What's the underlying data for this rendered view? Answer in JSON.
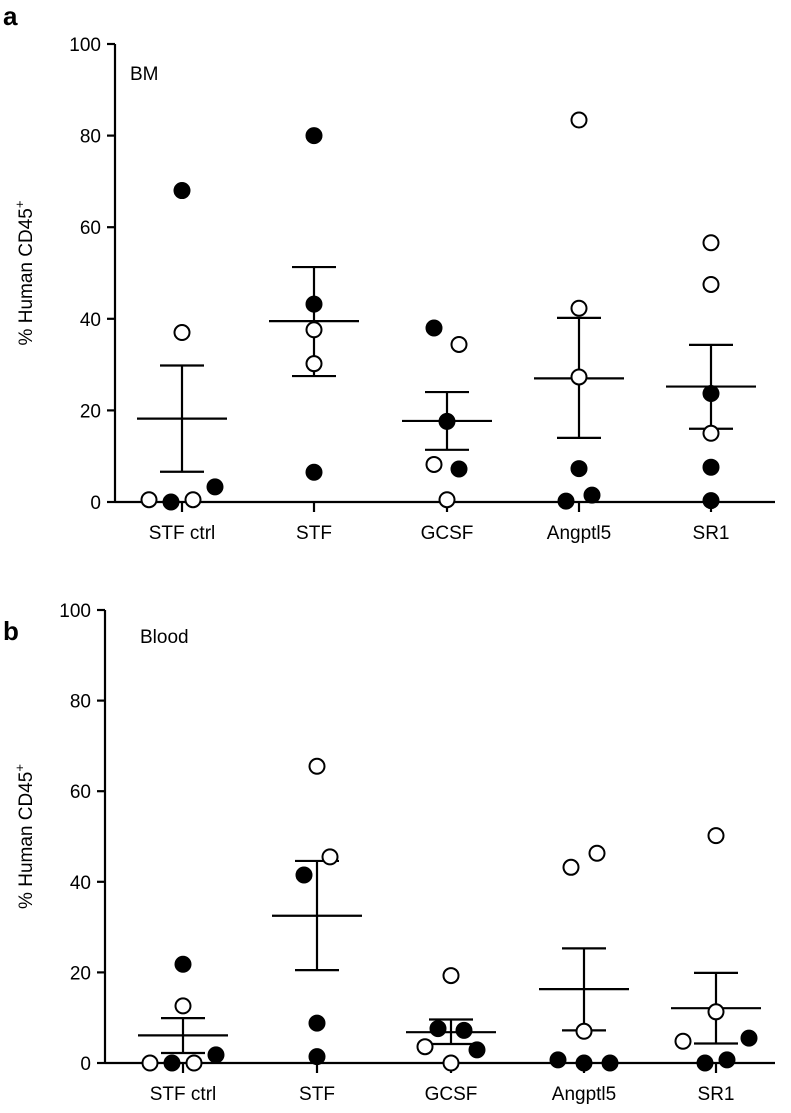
{
  "chart_data": [
    {
      "type": "scatter",
      "panel_label": "a",
      "inset_label": "BM",
      "ylabel": "% Human CD45",
      "ylabel_sup": "+",
      "ylim": [
        0,
        100
      ],
      "yticks": [
        "0",
        "20",
        "40",
        "60",
        "80",
        "100"
      ],
      "categories": [
        "STF ctrl",
        "STF",
        "GCSF",
        "Angptl5",
        "SR1"
      ],
      "groups": [
        {
          "points": [
            {
              "v": 68,
              "filled": true
            },
            {
              "v": 37,
              "filled": false
            },
            {
              "v": 0.5,
              "filled": false
            },
            {
              "v": 0,
              "filled": true
            },
            {
              "v": 0.5,
              "filled": false
            },
            {
              "v": 3.3,
              "filled": true
            }
          ],
          "mean": 18.2,
          "sem_low": 6.6,
          "sem_high": 29.8
        },
        {
          "points": [
            {
              "v": 80,
              "filled": true
            },
            {
              "v": 43.2,
              "filled": true
            },
            {
              "v": 37.6,
              "filled": false
            },
            {
              "v": 30.2,
              "filled": false
            },
            {
              "v": 6.5,
              "filled": true
            }
          ],
          "mean": 39.5,
          "sem_low": 27.5,
          "sem_high": 51.3
        },
        {
          "points": [
            {
              "v": 38,
              "filled": true
            },
            {
              "v": 34.4,
              "filled": false
            },
            {
              "v": 17.6,
              "filled": true
            },
            {
              "v": 8.2,
              "filled": false
            },
            {
              "v": 7.2,
              "filled": true
            },
            {
              "v": 0.5,
              "filled": false
            }
          ],
          "mean": 17.7,
          "sem_low": 11.4,
          "sem_high": 24
        },
        {
          "points": [
            {
              "v": 83.4,
              "filled": false
            },
            {
              "v": 42.3,
              "filled": false
            },
            {
              "v": 27.3,
              "filled": false
            },
            {
              "v": 7.3,
              "filled": true
            },
            {
              "v": 0.2,
              "filled": true
            },
            {
              "v": 1.5,
              "filled": true
            }
          ],
          "mean": 27,
          "sem_low": 14,
          "sem_high": 40.2
        },
        {
          "points": [
            {
              "v": 56.6,
              "filled": false
            },
            {
              "v": 47.5,
              "filled": false
            },
            {
              "v": 23.7,
              "filled": true
            },
            {
              "v": 15,
              "filled": false
            },
            {
              "v": 7.6,
              "filled": true
            },
            {
              "v": 0.3,
              "filled": true
            }
          ],
          "mean": 25.2,
          "sem_low": 16,
          "sem_high": 34.3
        }
      ]
    },
    {
      "type": "scatter",
      "panel_label": "b",
      "inset_label": "Blood",
      "ylabel": "% Human CD45",
      "ylabel_sup": "+",
      "ylim": [
        0,
        100
      ],
      "yticks": [
        "0",
        "20",
        "40",
        "60",
        "80",
        "100"
      ],
      "categories": [
        "STF ctrl",
        "STF",
        "GCSF",
        "Angptl5",
        "SR1"
      ],
      "groups": [
        {
          "points": [
            {
              "v": 21.8,
              "filled": true
            },
            {
              "v": 12.6,
              "filled": false
            },
            {
              "v": 0,
              "filled": false
            },
            {
              "v": 0,
              "filled": true
            },
            {
              "v": 0,
              "filled": false
            },
            {
              "v": 1.8,
              "filled": true
            }
          ],
          "mean": 6.1,
          "sem_low": 2.2,
          "sem_high": 9.9
        },
        {
          "points": [
            {
              "v": 65.5,
              "filled": false
            },
            {
              "v": 45.5,
              "filled": false
            },
            {
              "v": 41.5,
              "filled": true
            },
            {
              "v": 8.8,
              "filled": true
            },
            {
              "v": 1.4,
              "filled": true
            }
          ],
          "mean": 32.5,
          "sem_low": 20.5,
          "sem_high": 44.6
        },
        {
          "points": [
            {
              "v": 19.3,
              "filled": false
            },
            {
              "v": 7.6,
              "filled": true
            },
            {
              "v": 7.2,
              "filled": true
            },
            {
              "v": 3.6,
              "filled": false
            },
            {
              "v": 2.9,
              "filled": true
            },
            {
              "v": 0,
              "filled": false
            }
          ],
          "mean": 6.8,
          "sem_low": 4.2,
          "sem_high": 9.6
        },
        {
          "points": [
            {
              "v": 46.3,
              "filled": false
            },
            {
              "v": 43.2,
              "filled": false
            },
            {
              "v": 7,
              "filled": false
            },
            {
              "v": 0.7,
              "filled": true
            },
            {
              "v": 0,
              "filled": true
            },
            {
              "v": 0,
              "filled": true
            }
          ],
          "mean": 16.3,
          "sem_low": 7.2,
          "sem_high": 25.3
        },
        {
          "points": [
            {
              "v": 50.2,
              "filled": false
            },
            {
              "v": 11.3,
              "filled": false
            },
            {
              "v": 5.5,
              "filled": true
            },
            {
              "v": 4.8,
              "filled": false
            },
            {
              "v": 0.7,
              "filled": true
            },
            {
              "v": 0,
              "filled": true
            }
          ],
          "mean": 12.1,
          "sem_low": 4.3,
          "sem_high": 19.9
        }
      ]
    }
  ]
}
